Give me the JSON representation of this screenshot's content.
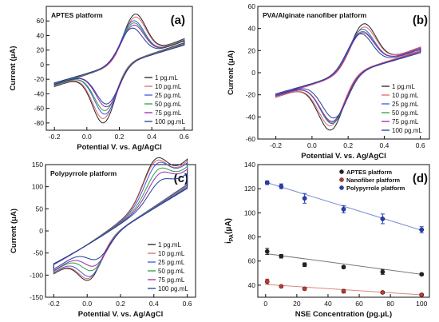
{
  "panels": [
    {
      "letter": "(a)",
      "chart_data": {
        "type": "line",
        "title": "APTES platform",
        "xlabel": "Potential V. vs. Ag/AgCl",
        "ylabel": "Current (μA)",
        "xlim": [
          -0.25,
          0.65
        ],
        "ylim": [
          -90,
          80
        ],
        "xticks": [
          -0.2,
          0.0,
          0.2,
          0.4,
          0.6
        ],
        "xtick_labels": [
          "-0.2",
          "0.0",
          "0.2",
          "0.4",
          "0.6"
        ],
        "yticks": [
          -80,
          -60,
          -40,
          -20,
          0,
          20,
          40,
          60
        ],
        "ytick_labels": [
          "-80",
          "-60",
          "-40",
          "-20",
          "0",
          "20",
          "40",
          "60"
        ],
        "legend_position": "bottom-right",
        "series": [
          {
            "name": "1 pg.mL",
            "color": "#222222",
            "start": -0.2,
            "end": 0.6,
            "ipa": 67,
            "epa": 0.3,
            "ipc": -80,
            "epc": 0.1,
            "i_end": 30,
            "i_start": -28,
            "ls": 7,
            "sp": 0.7
          },
          {
            "name": "10 pg.mL",
            "color": "#e06666",
            "start": -0.2,
            "end": 0.6,
            "ipa": 63,
            "epa": 0.3,
            "ipc": -74,
            "epc": 0.1,
            "i_end": 29,
            "i_start": -27,
            "ls": 7,
            "sp": 0.7
          },
          {
            "name": "25 pg.mL",
            "color": "#3b5bdb",
            "start": -0.2,
            "end": 0.6,
            "ipa": 58,
            "epa": 0.29,
            "ipc": -68,
            "epc": 0.11,
            "i_end": 28,
            "i_start": -26,
            "ls": 7,
            "sp": 0.7
          },
          {
            "name": "50 pg.mL",
            "color": "#2e9e44",
            "start": -0.2,
            "end": 0.6,
            "ipa": 55,
            "epa": 0.29,
            "ipc": -63,
            "epc": 0.11,
            "i_end": 28,
            "i_start": -26,
            "ls": 7,
            "sp": 0.7
          },
          {
            "name": "75 pg.mL",
            "color": "#9c27b0",
            "start": -0.2,
            "end": 0.6,
            "ipa": 52,
            "epa": 0.29,
            "ipc": -58,
            "epc": 0.12,
            "i_end": 27,
            "i_start": -25,
            "ls": 7,
            "sp": 0.7
          },
          {
            "name": "100 pg.mL",
            "color": "#1f3f99",
            "start": -0.2,
            "end": 0.6,
            "ipa": 48,
            "epa": 0.28,
            "ipc": -54,
            "epc": 0.12,
            "i_end": 27,
            "i_start": -25,
            "ls": 7,
            "sp": 0.7
          }
        ]
      }
    },
    {
      "letter": "(b)",
      "chart_data": {
        "type": "line",
        "title": "PVA/Alginate nanofiber platform",
        "xlabel": "Potential V. vs. Ag/AgCl",
        "ylabel": "Current (μA)",
        "xlim": [
          -0.3,
          0.65
        ],
        "ylim": [
          -60,
          60
        ],
        "xticks": [
          -0.2,
          0.0,
          0.2,
          0.4,
          0.6
        ],
        "xtick_labels": [
          "-0.2",
          "0.0",
          "0.2",
          "0.4",
          "0.6"
        ],
        "yticks": [
          -60,
          -40,
          -20,
          0,
          20,
          40,
          60
        ],
        "ytick_labels": [
          "-60",
          "-40",
          "-20",
          "0",
          "20",
          "40",
          "60"
        ],
        "legend_position": "bottom-right",
        "series": [
          {
            "name": "1 pg.mL",
            "color": "#222222",
            "start": -0.2,
            "end": 0.6,
            "ipa": 43,
            "epa": 0.29,
            "ipc": -52,
            "epc": 0.1,
            "i_end": 20,
            "i_start": -21,
            "ls": 4,
            "sp": 0.6
          },
          {
            "name": "10 pg.mL",
            "color": "#e06666",
            "start": -0.2,
            "end": 0.6,
            "ipa": 40,
            "epa": 0.29,
            "ipc": -48,
            "epc": 0.1,
            "i_end": 20,
            "i_start": -21,
            "ls": 4,
            "sp": 0.6
          },
          {
            "name": "25 pg.mL",
            "color": "#3b5bdb",
            "start": -0.2,
            "end": 0.6,
            "ipa": 38,
            "epa": 0.28,
            "ipc": -46,
            "epc": 0.11,
            "i_end": 19,
            "i_start": -20,
            "ls": 4,
            "sp": 0.6
          },
          {
            "name": "50 pg.mL",
            "color": "#2e9e44",
            "start": -0.2,
            "end": 0.6,
            "ipa": 36,
            "epa": 0.28,
            "ipc": -45,
            "epc": 0.11,
            "i_end": 19,
            "i_start": -20,
            "ls": 4,
            "sp": 0.6
          },
          {
            "name": "75 pg.mL",
            "color": "#9c27b0",
            "start": -0.2,
            "end": 0.6,
            "ipa": 35,
            "epa": 0.28,
            "ipc": -44,
            "epc": 0.11,
            "i_end": 19,
            "i_start": -20,
            "ls": 4,
            "sp": 0.6
          },
          {
            "name": "100 pg.mL",
            "color": "#1f3f99",
            "start": -0.2,
            "end": 0.6,
            "ipa": 34,
            "epa": 0.27,
            "ipc": -41,
            "epc": 0.12,
            "i_end": 18,
            "i_start": -19,
            "ls": 4,
            "sp": 0.6
          }
        ]
      }
    },
    {
      "letter": "(c)",
      "chart_data": {
        "type": "line",
        "title": "Polypyrrole platform",
        "xlabel": "Potential V. vs. Ag/AgCl",
        "ylabel": "Current (μA)",
        "xlim": [
          -0.25,
          0.65
        ],
        "ylim": [
          -150,
          150
        ],
        "xticks": [
          -0.2,
          0.0,
          0.2,
          0.4,
          0.6
        ],
        "xtick_labels": [
          "-0.2",
          "0.0",
          "0.2",
          "0.4",
          "0.6"
        ],
        "yticks": [
          -150,
          -100,
          -50,
          0,
          50,
          100,
          150
        ],
        "ytick_labels": [
          "-150",
          "-100",
          "-50",
          "0",
          "50",
          "100",
          "150"
        ],
        "legend_position": "bottom-right",
        "series": [
          {
            "name": "1 pg.mL",
            "color": "#222222",
            "start": -0.2,
            "end": 0.6,
            "ipa": 125,
            "epa": 0.42,
            "ipc": -112,
            "epc": 0.0,
            "i_end": 105,
            "i_start": -76,
            "ls": 70,
            "sp": 1.5
          },
          {
            "name": "10 pg.mL",
            "color": "#e06666",
            "start": -0.2,
            "end": 0.6,
            "ipa": 122,
            "epa": 0.42,
            "ipc": -108,
            "epc": 0.0,
            "i_end": 104,
            "i_start": -76,
            "ls": 66,
            "sp": 1.5
          },
          {
            "name": "25 pg.mL",
            "color": "#3b5bdb",
            "start": -0.2,
            "end": 0.6,
            "ipa": 118,
            "epa": 0.43,
            "ipc": -103,
            "epc": 0.01,
            "i_end": 103,
            "i_start": -76,
            "ls": 62,
            "sp": 1.5
          },
          {
            "name": "50 pg.mL",
            "color": "#2e9e44",
            "start": -0.2,
            "end": 0.6,
            "ipa": 108,
            "epa": 0.44,
            "ipc": -90,
            "epc": 0.02,
            "i_end": 100,
            "i_start": -75,
            "ls": 55,
            "sp": 1.5
          },
          {
            "name": "75 pg.mL",
            "color": "#9c27b0",
            "start": -0.2,
            "end": 0.6,
            "ipa": 101,
            "epa": 0.45,
            "ipc": -80,
            "epc": 0.03,
            "i_end": 98,
            "i_start": -75,
            "ls": 50,
            "sp": 1.5
          },
          {
            "name": "100 pg.mL",
            "color": "#1f3f99",
            "start": -0.2,
            "end": 0.6,
            "ipa": 90,
            "epa": 0.46,
            "ipc": -65,
            "epc": 0.04,
            "i_end": 96,
            "i_start": -74,
            "ls": 42,
            "sp": 1.5
          }
        ]
      }
    },
    {
      "letter": "(d)",
      "chart_data": {
        "type": "scatter",
        "title": "",
        "xlabel": "NSE Concentration (pg.μL)",
        "ylabel_main": "i",
        "ylabel_sub": "PA",
        "ylabel_unit": "(μA)",
        "xlim": [
          -5,
          105
        ],
        "ylim": [
          30,
          140
        ],
        "xticks": [
          0,
          20,
          40,
          60,
          80,
          100
        ],
        "xtick_labels": [
          "0",
          "20",
          "40",
          "60",
          "80",
          "100"
        ],
        "yticks": [
          40,
          60,
          80,
          100,
          120,
          140
        ],
        "ytick_labels": [
          "40",
          "60",
          "80",
          "100",
          "120",
          "140"
        ],
        "legend_position": "top-left",
        "x": [
          1,
          10,
          25,
          50,
          75,
          100
        ],
        "series": [
          {
            "name": "APTES platform",
            "color": "#222222",
            "line_color": "#777777",
            "values": [
              68,
              64,
              57,
              55,
              51,
              49
            ],
            "errors": [
              2.5,
              1.5,
              1.5,
              1.0,
              2.0,
              1.0
            ],
            "fit": [
              66,
              49
            ]
          },
          {
            "name": "Nanofiber platform",
            "color": "#c0392b",
            "line_color": "#d98880",
            "values": [
              43,
              39,
              37,
              35,
              34,
              32
            ],
            "errors": [
              2.0,
              1.0,
              1.0,
              1.5,
              1.0,
              1.0
            ],
            "fit": [
              40.5,
              32
            ]
          },
          {
            "name": "Polypyrrole platform",
            "color": "#2040c0",
            "line_color": "#7b8cd6",
            "values": [
              125,
              122,
              112,
              103,
              95,
              86
            ],
            "errors": [
              1.5,
              2.0,
              4.0,
              3.0,
              4.0,
              2.5
            ],
            "fit": [
              125,
              85.5
            ]
          }
        ]
      }
    }
  ]
}
